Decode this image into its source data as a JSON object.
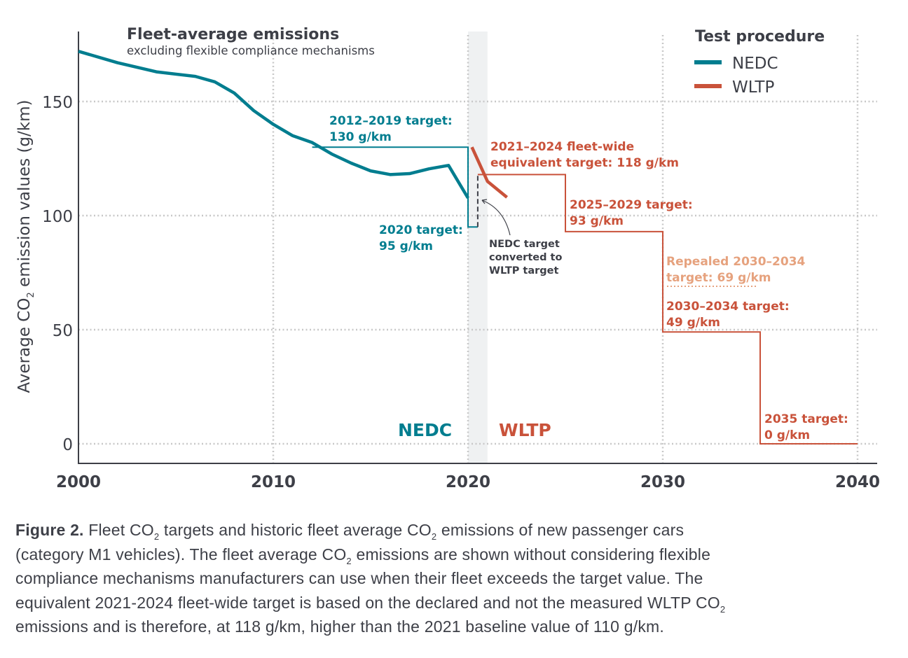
{
  "colors": {
    "nedc": "#007d8f",
    "wltp": "#c9523a",
    "repealed": "#e6a27e",
    "grid": "#c8c8c8",
    "band": "#eff1f2",
    "text": "#3d3f47",
    "dashed": "#3d3f47"
  },
  "chart_data": {
    "type": "line",
    "title": "Fleet-average emissions",
    "subtitle": "excluding flexible compliance mechanisms",
    "ylabel_pre": "Average CO",
    "ylabel_sub": "2",
    "ylabel_post": " emission values (g/km)",
    "xlim": [
      2000,
      2040
    ],
    "ylim": [
      0,
      175
    ],
    "grid": true,
    "x_ticks": [
      "2000",
      "2010",
      "2020",
      "2030",
      "2040"
    ],
    "y_ticks": [
      "0",
      "50",
      "100",
      "150"
    ],
    "legend": {
      "title": "Test procedure",
      "placement": "top-right",
      "entries": [
        "NEDC",
        "WLTP"
      ]
    },
    "shaded_band": [
      2020,
      2021
    ],
    "region_labels": {
      "nedc": "NEDC",
      "wltp": "WLTP"
    },
    "series": [
      {
        "name": "NEDC",
        "x": [
          2000,
          2002,
          2003,
          2004,
          2006,
          2007,
          2008,
          2009,
          2010,
          2011,
          2012,
          2013,
          2014,
          2015,
          2016,
          2017,
          2018,
          2019,
          2020
        ],
        "values": [
          172,
          167,
          165,
          163,
          161,
          158.6,
          153.7,
          146,
          140,
          135,
          132,
          127,
          123,
          119.6,
          118,
          118.4,
          120.5,
          122,
          107.7
        ]
      },
      {
        "name": "WLTP",
        "x": [
          2020.2,
          2021,
          2022
        ],
        "values": [
          130,
          115,
          108
        ]
      }
    ],
    "targets": {
      "nedc": [
        {
          "from": 2012,
          "to": 2020,
          "value": 130
        },
        {
          "from": 2020,
          "to": 2020.5,
          "value": 95
        }
      ],
      "wltp": [
        {
          "from": 2020.5,
          "to": 2025,
          "value": 118
        },
        {
          "from": 2025,
          "to": 2030,
          "value": 93
        },
        {
          "from": 2030,
          "to": 2035,
          "value": 49
        },
        {
          "from": 2035,
          "to": 2040,
          "value": 0
        }
      ],
      "repealed": {
        "from": 2030,
        "to": 2034.8,
        "value": 69
      },
      "converted": {
        "x": 2020.5,
        "from": 95,
        "to": 118
      }
    },
    "annotations": {
      "t2012": [
        "2012–2019 target:",
        "130 g/km"
      ],
      "t2020": [
        "2020 target:",
        "95 g/km"
      ],
      "t2021": [
        "2021–2024 fleet-wide",
        "equivalent target: 118 g/km"
      ],
      "t2025": [
        "2025–2029 target:",
        "93 g/km"
      ],
      "repealed": [
        "Repealed 2030–2034",
        "target: 69 g/km"
      ],
      "t2030": [
        "2030–2034 target:",
        "49 g/km"
      ],
      "t2035": [
        "2035 target:",
        "0 g/km"
      ],
      "converted": [
        "NEDC target",
        "converted to",
        "WLTP target"
      ]
    }
  },
  "caption": {
    "label": "Figure 2.",
    "lines": [
      [
        {
          "t": " Fleet CO"
        },
        {
          "s": "2"
        },
        {
          "t": " targets and historic fleet average CO"
        },
        {
          "s": "2"
        },
        {
          "t": " emissions of new passenger cars"
        }
      ],
      [
        {
          "t": "(category M1 vehicles). The fleet average CO"
        },
        {
          "s": "2"
        },
        {
          "t": " emissions are shown without considering flexible"
        }
      ],
      [
        {
          "t": "compliance mechanisms manufacturers can use when their fleet exceeds the target value. The"
        }
      ],
      [
        {
          "t": "equivalent 2021-2024 fleet-wide target is based on the declared and not the measured WLTP CO"
        },
        {
          "s": "2"
        }
      ],
      [
        {
          "t": "emissions and is therefore, at 118 g/km, higher than the 2021 baseline value of 110 g/km."
        }
      ]
    ]
  }
}
